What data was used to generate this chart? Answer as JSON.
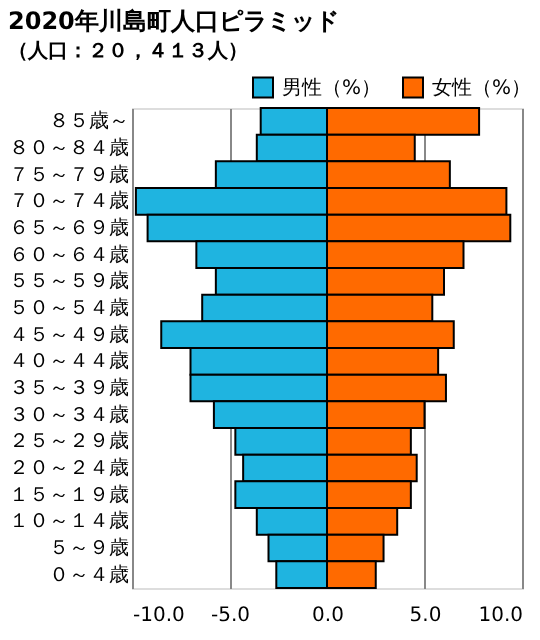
{
  "chart_data": {
    "type": "bar",
    "orientation": "horizontal",
    "title": "2020年川島町人口ピラミッド",
    "subtitle": "（人口：２０，４１３人）",
    "categories": [
      "８５歳～",
      "８０～８４歳",
      "７５～７９歳",
      "７０～７４歳",
      "６５～６９歳",
      "６０～６４歳",
      "５５～５９歳",
      "５０～５４歳",
      "４５～４９歳",
      "４０～４４歳",
      "３５～３９歳",
      "３０～３４歳",
      "２５～２９歳",
      "２０～２４歳",
      "１５～１９歳",
      "１０～１４歳",
      "５～９歳",
      "０～４歳"
    ],
    "series": [
      {
        "name": "男性（%）",
        "color": "#1fb4e0",
        "values": [
          -3.4,
          -3.6,
          -5.7,
          -9.8,
          -9.2,
          -6.7,
          -5.7,
          -6.4,
          -8.5,
          -7.0,
          -7.0,
          -5.8,
          -4.7,
          -4.3,
          -4.7,
          -3.6,
          -3.0,
          -2.6
        ]
      },
      {
        "name": "女性（%）",
        "color": "#ff6a00",
        "values": [
          7.8,
          4.5,
          6.3,
          9.2,
          9.4,
          7.0,
          6.0,
          5.4,
          6.5,
          5.7,
          6.1,
          5.0,
          4.3,
          4.6,
          4.3,
          3.6,
          2.9,
          2.5
        ]
      }
    ],
    "xlim": [
      -10,
      10
    ],
    "xticks": [
      {
        "value": -10,
        "label": "-10.0"
      },
      {
        "value": -5,
        "label": "-5.0"
      },
      {
        "value": 0,
        "label": "0.0"
      },
      {
        "value": 5,
        "label": "5.0"
      },
      {
        "value": 10,
        "label": "10.0"
      }
    ],
    "grid": "x",
    "legend": "top right",
    "stacked": true
  }
}
